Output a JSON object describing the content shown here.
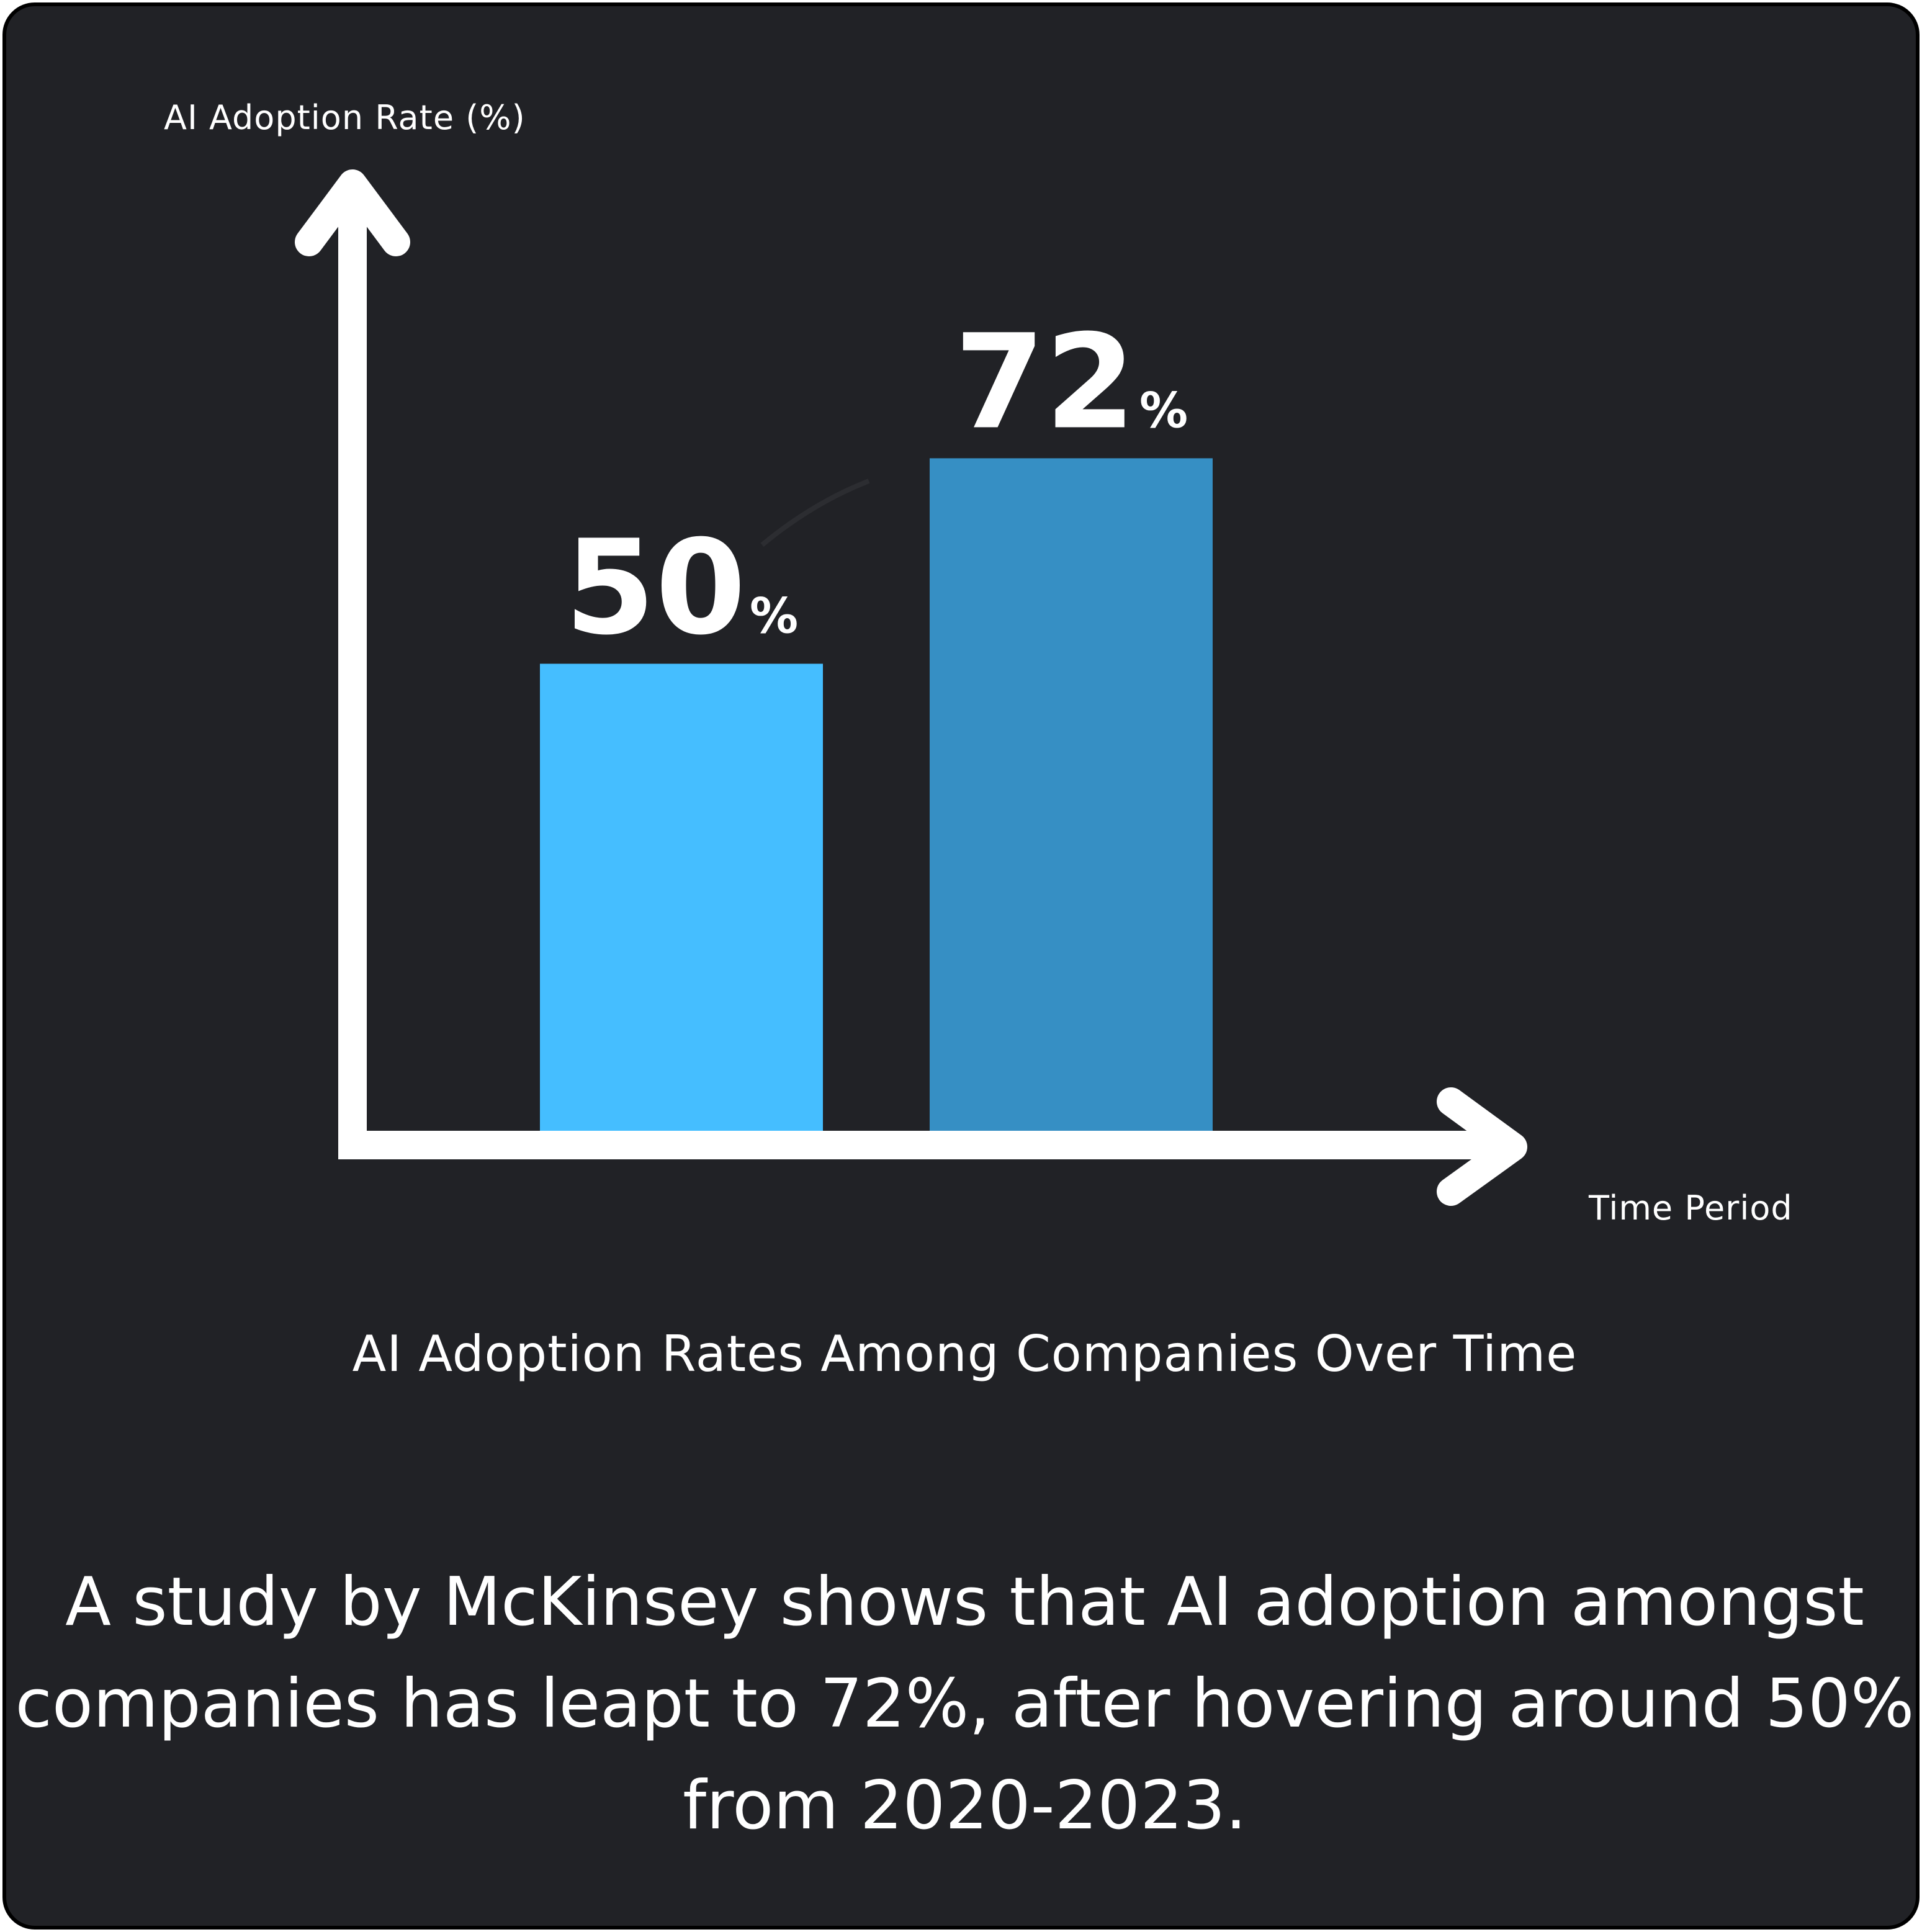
{
  "chart_data": {
    "type": "bar",
    "title": "AI Adoption Rates Among Companies Over Time",
    "xlabel": "Time Period",
    "ylabel": "AI Adoption Rate (%)",
    "values": [
      50,
      72
    ],
    "value_labels": [
      {
        "number": "50",
        "unit": "%"
      },
      {
        "number": "72",
        "unit": "%"
      }
    ],
    "ylim": [
      0,
      100
    ],
    "grid": false,
    "bar_colors": [
      "#45BEFF",
      "#368FC4"
    ]
  },
  "caption": "A study by McKinsey shows that AI adoption amongst companies has leapt to 72%, after hovering around 50% from 2020-2023.",
  "colors": {
    "background": "#212226",
    "border": "#000000",
    "text": "#ffffff",
    "axis": "#ffffff"
  }
}
